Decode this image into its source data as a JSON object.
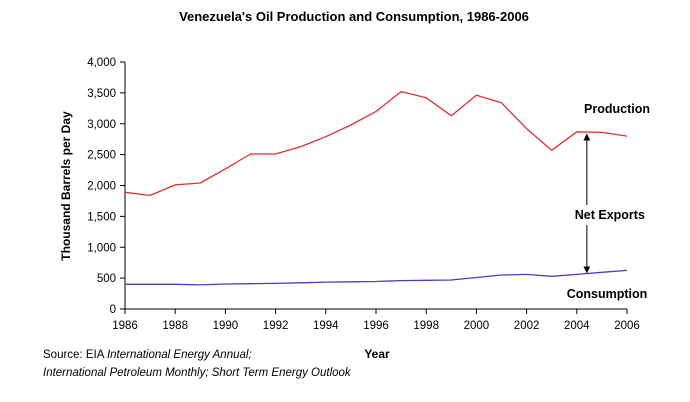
{
  "chart_data": {
    "type": "line",
    "title": "Venezuela's Oil Production and Consumption, 1986-2006",
    "xlabel": "Year",
    "ylabel": "Thousand Barrels per Day",
    "xlim": [
      1986,
      2006
    ],
    "ylim": [
      0,
      4000
    ],
    "x_ticks": [
      "1986",
      "1988",
      "1990",
      "1992",
      "1994",
      "1996",
      "1998",
      "2000",
      "2002",
      "2004",
      "2006"
    ],
    "y_ticks": [
      "0",
      "500",
      "1,000",
      "1,500",
      "2,000",
      "2,500",
      "3,000",
      "3,500",
      "4,000"
    ],
    "grid": false,
    "x": [
      1986,
      1987,
      1988,
      1989,
      1990,
      1991,
      1992,
      1993,
      1994,
      1995,
      1996,
      1997,
      1998,
      1999,
      2000,
      2001,
      2002,
      2003,
      2004,
      2005,
      2006
    ],
    "series": [
      {
        "name": "Production",
        "color": "#e03030",
        "values": [
          1890,
          1840,
          2010,
          2040,
          2270,
          2510,
          2510,
          2630,
          2790,
          2980,
          3200,
          3520,
          3420,
          3130,
          3460,
          3340,
          2920,
          2570,
          2870,
          2860,
          2800
        ]
      },
      {
        "name": "Consumption",
        "color": "#4a3cc8",
        "values": [
          400,
          400,
          400,
          390,
          405,
          410,
          415,
          425,
          435,
          440,
          445,
          460,
          465,
          470,
          510,
          550,
          560,
          530,
          560,
          595,
          625
        ]
      }
    ],
    "annotations": [
      {
        "text": "Net Exports",
        "x": 2004.4,
        "from": 2830,
        "to": 590
      }
    ],
    "source_prefix": "Source: EIA ",
    "source_pub1": "International Energy Annual;",
    "source_line2": "International Petroleum Monthly; Short Term Energy Outlook"
  }
}
